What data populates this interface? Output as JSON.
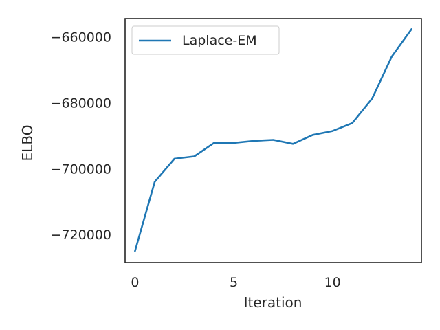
{
  "chart_data": {
    "type": "line",
    "title": "",
    "xlabel": "Iteration",
    "ylabel": "ELBO",
    "xlim": [
      -0.5,
      14.5
    ],
    "ylim": [
      -728500,
      -654500
    ],
    "xticks": [
      0,
      5,
      10
    ],
    "xtick_labels": [
      "0",
      "5",
      "10"
    ],
    "yticks": [
      -720000,
      -700000,
      -680000,
      -660000
    ],
    "ytick_labels": [
      "−720000",
      "−700000",
      "−680000",
      "−660000"
    ],
    "grid": false,
    "legend_position": "top-left",
    "series": [
      {
        "name": "Laplace-EM",
        "color": "#1f77b4",
        "x": [
          0,
          1,
          2,
          3,
          4,
          5,
          6,
          7,
          8,
          9,
          10,
          11,
          12,
          13,
          14
        ],
        "y": [
          -725000,
          -704000,
          -697000,
          -696300,
          -692200,
          -692200,
          -691600,
          -691300,
          -692500,
          -689800,
          -688600,
          -686200,
          -678800,
          -666000,
          -657700
        ]
      }
    ]
  }
}
